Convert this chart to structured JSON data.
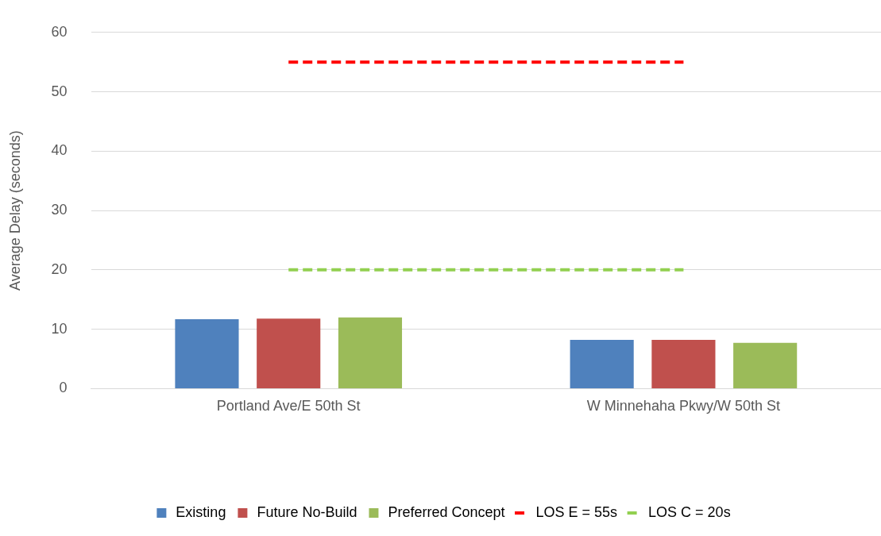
{
  "chart_data": {
    "type": "bar",
    "ylabel": "Average Delay (seconds)",
    "categories": [
      "Portland Ave/E 50th St",
      "W Minnehaha Pkwy/W 50th St"
    ],
    "series": [
      {
        "name": "Existing",
        "color": "#4f81bd",
        "values": [
          11.7,
          8.2
        ]
      },
      {
        "name": "Future No-Build",
        "color": "#c0504d",
        "values": [
          11.8,
          8.2
        ]
      },
      {
        "name": "Preferred Concept",
        "color": "#9bbb59",
        "values": [
          12.0,
          7.7
        ]
      },
      {
        "name": "LOS E = 55s",
        "type": "line",
        "color": "#ff0000",
        "line_style": "dashed",
        "marker": "none",
        "values": [
          55,
          55
        ]
      },
      {
        "name": "LOS C = 20s",
        "type": "line",
        "color": "#92d050",
        "line_style": "dashed",
        "marker": "none",
        "values": [
          20,
          20
        ]
      }
    ],
    "ylim": [
      0,
      60
    ],
    "yticks": [
      0,
      10,
      20,
      30,
      40,
      50,
      60
    ],
    "grid": "y",
    "legend": "bottom"
  }
}
